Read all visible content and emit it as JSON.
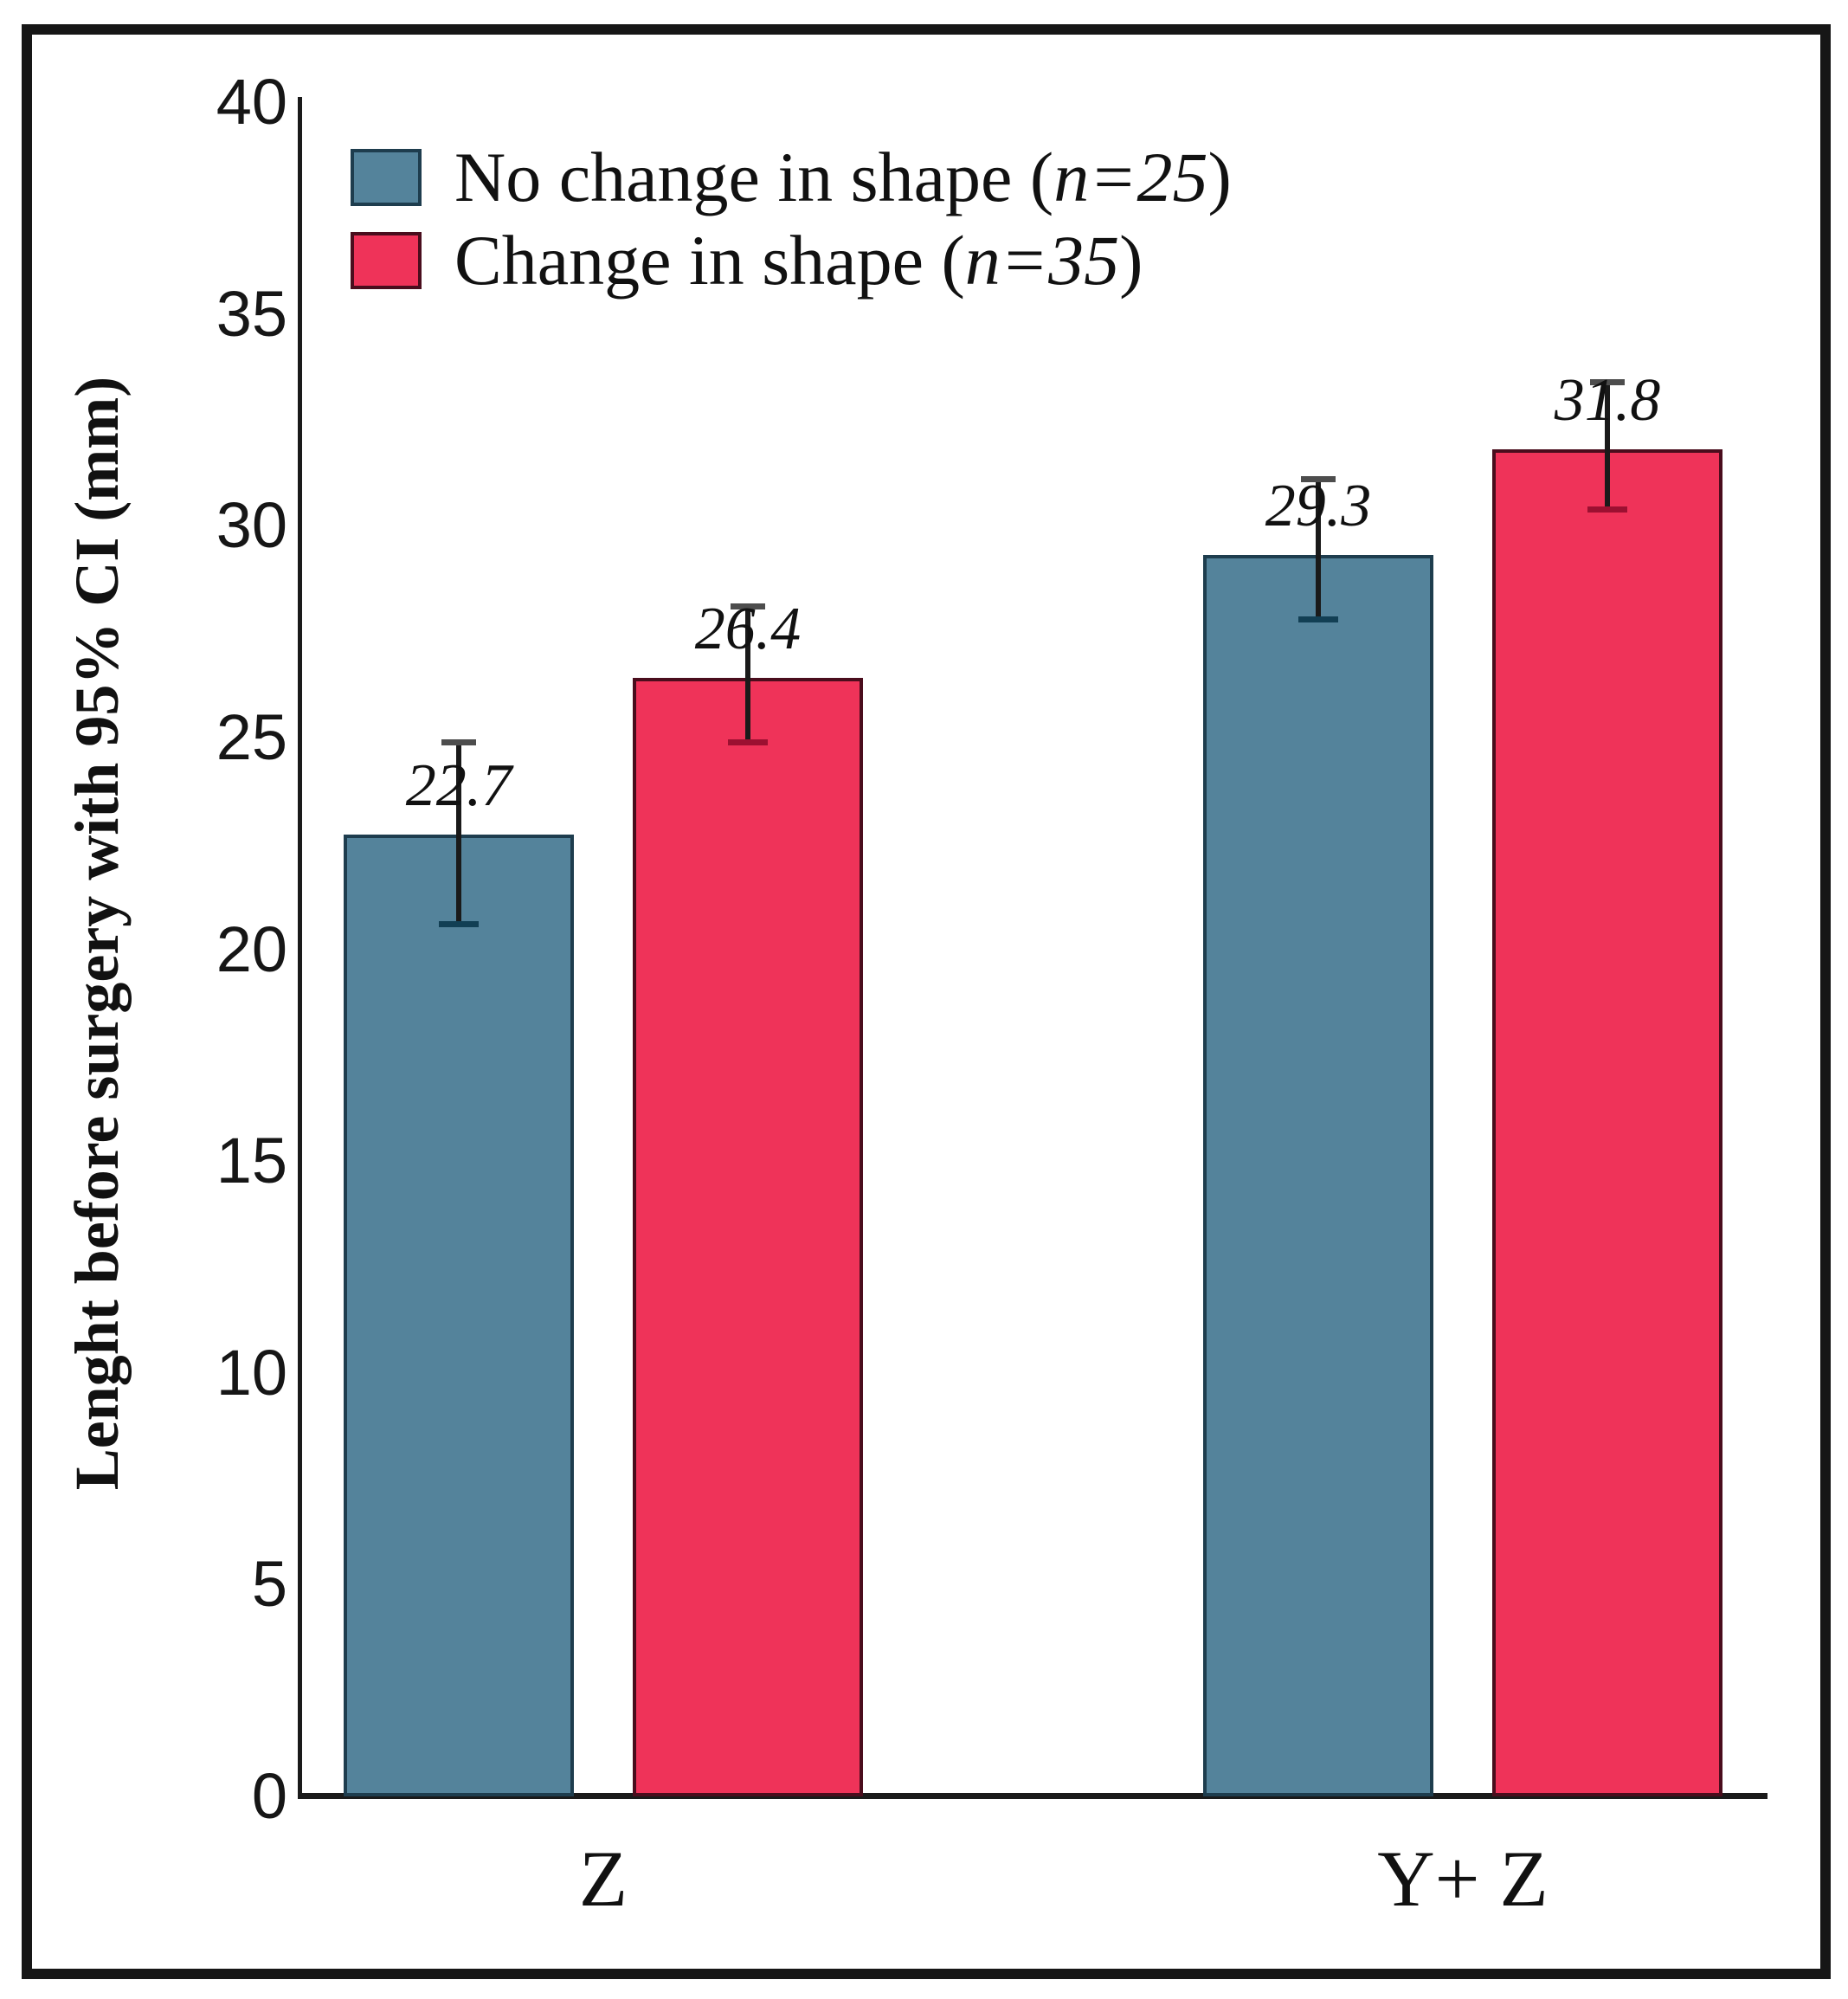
{
  "figure": {
    "background": "#ffffff",
    "border_color": "#161616"
  },
  "chart_data": {
    "type": "bar",
    "title": "",
    "categories": [
      "Z",
      "Y+ Z"
    ],
    "series": [
      {
        "name": "No change in shape (n=25)",
        "color": "#54839B",
        "border_color": "#1E3D4E",
        "error_cap_color": "#123F54",
        "values": [
          22.7,
          29.3
        ],
        "ci_low": [
          20.6,
          27.8
        ],
        "ci_high": [
          24.9,
          31.1
        ],
        "value_labels": [
          "22.7",
          "29.3"
        ]
      },
      {
        "name": "Change in shape (n=35)",
        "color": "#EF3359",
        "border_color": "#4A0D1D",
        "error_cap_color": "#9C1031",
        "values": [
          26.4,
          31.8
        ],
        "ci_low": [
          24.9,
          30.4
        ],
        "ci_high": [
          28.1,
          33.4
        ],
        "value_labels": [
          "26.4",
          "31.8"
        ]
      }
    ],
    "legend": {
      "position": "top-left",
      "items": [
        {
          "pre": "No change in shape (",
          "em": "n=25",
          "post": ")"
        },
        {
          "pre": "Change in shape (",
          "em": "n=35",
          "post": ")"
        }
      ]
    },
    "xlabel": "",
    "ylabel": "Lenght before surgery with 95% CI (mm)",
    "ylim": [
      0,
      40
    ],
    "yticks": [
      "0",
      "5",
      "10",
      "15",
      "20",
      "25",
      "30",
      "35",
      "40"
    ],
    "grid": false,
    "error_bars": "95% CI"
  }
}
